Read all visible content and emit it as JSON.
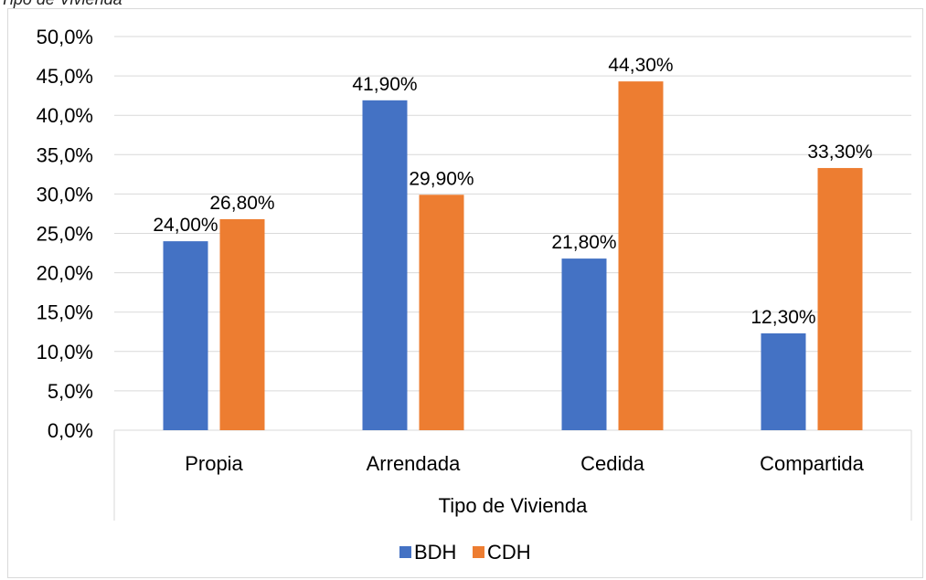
{
  "caption": "Tipo de Vivienda",
  "chart_data": {
    "type": "bar",
    "categories": [
      "Propia",
      "Arrendada",
      "Cedida",
      "Compartida"
    ],
    "series": [
      {
        "name": "BDH",
        "color": "#4472C4",
        "values": [
          24.0,
          41.9,
          21.8,
          12.3
        ],
        "labels": [
          "24,00%",
          "41,90%",
          "21,80%",
          "12,30%"
        ]
      },
      {
        "name": "CDH",
        "color": "#ED7D31",
        "values": [
          26.8,
          29.9,
          44.3,
          33.3
        ],
        "labels": [
          "26,80%",
          "29,90%",
          "44,30%",
          "33,30%"
        ]
      }
    ],
    "xlabel": "Tipo de Vivienda",
    "ylabel": "",
    "ylim": [
      0,
      50
    ],
    "yticks": [
      0,
      5,
      10,
      15,
      20,
      25,
      30,
      35,
      40,
      45,
      50
    ],
    "ytick_labels": [
      "0,0%",
      "5,0%",
      "10,0%",
      "15,0%",
      "20,0%",
      "25,0%",
      "30,0%",
      "35,0%",
      "40,0%",
      "45,0%",
      "50,0%"
    ],
    "grid": true,
    "legend_position": "bottom"
  }
}
